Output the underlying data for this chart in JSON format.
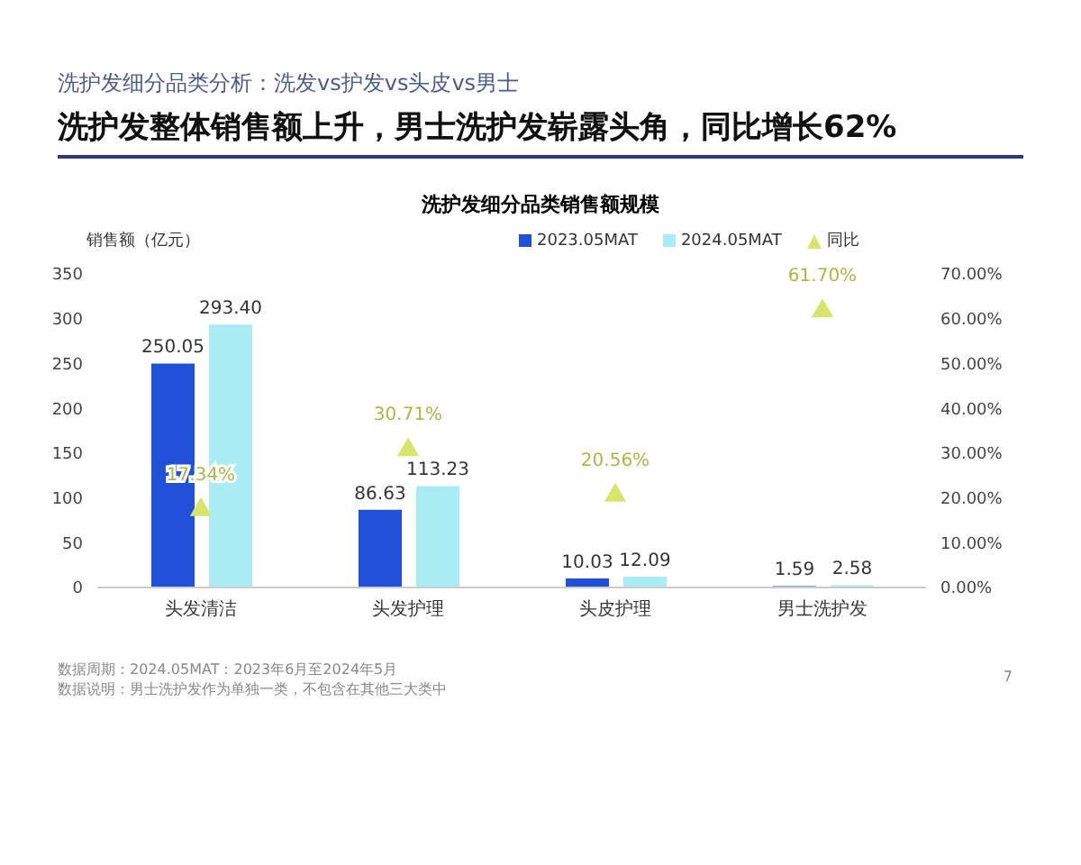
{
  "chart_data": {
    "type": "bar",
    "subtitle": "洗护发细分品类分析：洗发vs护发vs头皮vs男士",
    "title": "洗护发整体销售额上升，男士洗护发崭露头角，同比增长62%",
    "ylabel": "销售额（亿元）",
    "annotations": [
      "洗护发细分品类销售额规模",
      "数据周期：2024.05MAT：2023年6月至2024年5月",
      "数据说明：男士洗护发作为单独一类，不包含在其他三大类中",
      "7"
    ],
    "categories": [
      "头发清洁",
      "头发护理",
      "头皮护理",
      "男士洗护发"
    ],
    "series": [
      {
        "name": "2023.05MAT",
        "color": "#2150d8",
        "values": [
          250.05,
          86.63,
          10.03,
          1.59
        ],
        "value_labels": [
          "250.05",
          "86.63",
          "10.03",
          "1.59"
        ]
      },
      {
        "name": "2024.05MAT",
        "color": "#a9ecf4",
        "values": [
          293.4,
          113.23,
          12.09,
          2.58
        ],
        "value_labels": [
          "293.40",
          "113.23",
          "12.09",
          "2.58"
        ]
      },
      {
        "name": "同比",
        "type": "scatter",
        "axis": "y2",
        "marker": "triangle",
        "color": "#d6e66a",
        "values": [
          17.34,
          30.71,
          20.56,
          61.7
        ],
        "value_labels": [
          "17.34%",
          "30.71%",
          "20.56%",
          "61.70%"
        ]
      }
    ],
    "ylim": [
      0,
      350
    ],
    "yticks": [
      0,
      50,
      100,
      150,
      200,
      250,
      300,
      350
    ],
    "y2lim": [
      0,
      70
    ],
    "y2ticks": [
      {
        "value": 0,
        "label": "0.00%"
      },
      {
        "value": 10,
        "label": "10.00%"
      },
      {
        "value": 20,
        "label": "20.00%"
      },
      {
        "value": 30,
        "label": "30.00%"
      },
      {
        "value": 40,
        "label": "40.00%"
      },
      {
        "value": 50,
        "label": "50.00%"
      },
      {
        "value": 60,
        "label": "60.00%"
      },
      {
        "value": 70,
        "label": "70.00%"
      }
    ],
    "legend": "top",
    "grid": false
  }
}
